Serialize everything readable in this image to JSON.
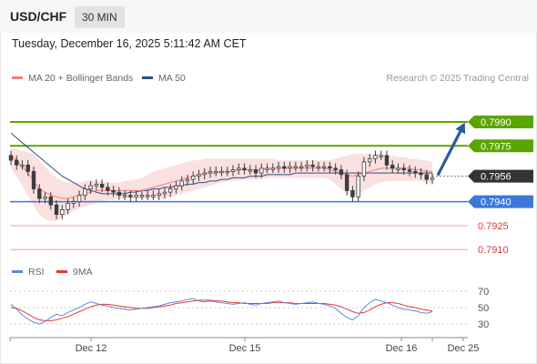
{
  "header": {
    "symbol": "USD/CHF",
    "timeframe": "30 MIN",
    "datetime": "Tuesday, December 16, 2025 5:11:42 AM CET"
  },
  "legend": {
    "ma20_label": "MA 20 + Bollinger Bands",
    "ma50_label": "MA 50",
    "rsi_label": "RSI",
    "ma9_label": "9MA",
    "credit": "Research © 2025 Trading Central"
  },
  "colors": {
    "candle": "#3d3d3d",
    "bollinger_fill": "#fbe0e0",
    "ma20": "#f08080",
    "ma50": "#2c4f86",
    "resistance": "#5aa500",
    "pivot": "#3c78d8",
    "support": "#e0383c",
    "current": "#333333",
    "arrow": "#2c5b9a",
    "rsi": "#5b8bd9",
    "rsi_ma": "#e53935"
  },
  "chart_data": [
    {
      "type": "candlestick",
      "instrument": "USD/CHF",
      "interval": "30 MIN",
      "ylim": [
        0.7905,
        0.7998
      ],
      "x_ticks": [
        "Dec 12",
        "Dec 15",
        "Dec 16",
        "Dec 25"
      ],
      "current_price": 0.7956,
      "levels": [
        {
          "value": 0.799,
          "label": "0.7990",
          "kind": "resistance"
        },
        {
          "value": 0.7975,
          "label": "0.7975",
          "kind": "resistance"
        },
        {
          "value": 0.7956,
          "label": "0.7956",
          "kind": "current"
        },
        {
          "value": 0.794,
          "label": "0.7940",
          "kind": "pivot"
        },
        {
          "value": 0.7925,
          "label": "0.7925",
          "kind": "support"
        },
        {
          "value": 0.791,
          "label": "0.7910",
          "kind": "support"
        }
      ],
      "close": [
        0.7966,
        0.7963,
        0.7963,
        0.7959,
        0.7948,
        0.7942,
        0.7943,
        0.7938,
        0.7932,
        0.7935,
        0.7939,
        0.794,
        0.7944,
        0.7948,
        0.795,
        0.7951,
        0.7949,
        0.7947,
        0.7946,
        0.7944,
        0.7944,
        0.7943,
        0.7944,
        0.7944,
        0.7944,
        0.7944,
        0.7945,
        0.7946,
        0.7948,
        0.795,
        0.7953,
        0.7954,
        0.7956,
        0.7957,
        0.7958,
        0.7959,
        0.7959,
        0.7959,
        0.7959,
        0.796,
        0.7961,
        0.796,
        0.796,
        0.7958,
        0.7961,
        0.7961,
        0.7961,
        0.7962,
        0.7961,
        0.7962,
        0.7962,
        0.7962,
        0.7963,
        0.7962,
        0.7962,
        0.7962,
        0.7961,
        0.796,
        0.7957,
        0.7947,
        0.7943,
        0.7956,
        0.7965,
        0.7967,
        0.7969,
        0.7969,
        0.7963,
        0.7961,
        0.7961,
        0.796,
        0.7959,
        0.7958,
        0.7957,
        0.7954,
        0.7955
      ],
      "ma20": [
        0.7969,
        0.7966,
        0.7962,
        0.7958,
        0.7953,
        0.7948,
        0.7946,
        0.7944,
        0.7943,
        0.7942,
        0.7942,
        0.7943,
        0.7944,
        0.7945,
        0.7946,
        0.7947,
        0.7947,
        0.7947,
        0.7947,
        0.7947,
        0.7947,
        0.7947,
        0.7947,
        0.7947,
        0.7948,
        0.7949,
        0.795,
        0.7951,
        0.7952,
        0.7953,
        0.7954,
        0.7955,
        0.7956,
        0.7957,
        0.7958,
        0.7958,
        0.7958,
        0.7959,
        0.7959,
        0.7959,
        0.796,
        0.796,
        0.796,
        0.796,
        0.796,
        0.7961,
        0.7961,
        0.7961,
        0.7961,
        0.7961,
        0.7961,
        0.7961,
        0.7961,
        0.7961,
        0.7961,
        0.7961,
        0.796,
        0.7959,
        0.7958,
        0.7957,
        0.7956,
        0.7957,
        0.7958,
        0.7959,
        0.796,
        0.7961,
        0.7961,
        0.7961,
        0.7961,
        0.7961,
        0.7961,
        0.796,
        0.796,
        0.7959,
        0.7959
      ],
      "bb_upper": [
        0.7974,
        0.7973,
        0.7972,
        0.7971,
        0.797,
        0.7966,
        0.7962,
        0.7958,
        0.7955,
        0.7953,
        0.7952,
        0.7952,
        0.7952,
        0.7953,
        0.7953,
        0.7953,
        0.7953,
        0.7952,
        0.7952,
        0.7952,
        0.7953,
        0.7953,
        0.7954,
        0.7955,
        0.7957,
        0.7959,
        0.796,
        0.7961,
        0.7962,
        0.7963,
        0.7964,
        0.7965,
        0.7966,
        0.7966,
        0.7967,
        0.7967,
        0.7967,
        0.7967,
        0.7967,
        0.7967,
        0.7967,
        0.7967,
        0.7967,
        0.7967,
        0.7967,
        0.7967,
        0.7967,
        0.7966,
        0.7966,
        0.7966,
        0.7966,
        0.7966,
        0.7966,
        0.7966,
        0.7966,
        0.7966,
        0.7966,
        0.7967,
        0.7968,
        0.7969,
        0.797,
        0.797,
        0.797,
        0.797,
        0.797,
        0.797,
        0.7969,
        0.7969,
        0.7968,
        0.7968,
        0.7967,
        0.7967,
        0.7966,
        0.7966,
        0.7965
      ],
      "bb_lower": [
        0.7961,
        0.7956,
        0.795,
        0.7944,
        0.7937,
        0.7932,
        0.7929,
        0.7928,
        0.7928,
        0.793,
        0.7932,
        0.7934,
        0.7936,
        0.7937,
        0.7938,
        0.7939,
        0.794,
        0.7941,
        0.7941,
        0.7942,
        0.7942,
        0.7942,
        0.7942,
        0.7942,
        0.7942,
        0.7942,
        0.7942,
        0.7942,
        0.7943,
        0.7944,
        0.7945,
        0.7946,
        0.7947,
        0.7948,
        0.7949,
        0.795,
        0.7951,
        0.7952,
        0.7953,
        0.7953,
        0.7953,
        0.7954,
        0.7954,
        0.7954,
        0.7954,
        0.7955,
        0.7955,
        0.7955,
        0.7955,
        0.7955,
        0.7955,
        0.7955,
        0.7955,
        0.7955,
        0.7955,
        0.7955,
        0.7954,
        0.7951,
        0.7948,
        0.7945,
        0.7944,
        0.7945,
        0.7947,
        0.7949,
        0.7951,
        0.7952,
        0.7953,
        0.7953,
        0.7953,
        0.7953,
        0.7953,
        0.7953,
        0.7953,
        0.7952,
        0.7952
      ],
      "ma50": [
        0.7983,
        0.798,
        0.7977,
        0.7974,
        0.7971,
        0.7968,
        0.7965,
        0.7962,
        0.7959,
        0.7956,
        0.7954,
        0.7952,
        0.795,
        0.7948,
        0.7947,
        0.7946,
        0.7945,
        0.7945,
        0.7945,
        0.7945,
        0.7945,
        0.7946,
        0.7946,
        0.7947,
        0.7947,
        0.7948,
        0.7948,
        0.7949,
        0.7949,
        0.795,
        0.795,
        0.7951,
        0.7951,
        0.7952,
        0.7952,
        0.7953,
        0.7953,
        0.7954,
        0.7954,
        0.7955,
        0.7955,
        0.7955,
        0.7956,
        0.7956,
        0.7956,
        0.7957,
        0.7957,
        0.7957,
        0.7957,
        0.7957,
        0.7958,
        0.7958,
        0.7958,
        0.7958,
        0.7958,
        0.7958,
        0.7958,
        0.7958,
        0.7958,
        0.7958,
        0.7958,
        0.7958,
        0.7958,
        0.7958,
        0.7958,
        0.7958,
        0.7958,
        0.7958,
        0.7958,
        0.7958,
        0.7958,
        0.7958,
        0.7958,
        0.7958,
        0.7958
      ],
      "projection": {
        "from": 0.7956,
        "to": 0.799
      }
    },
    {
      "type": "line",
      "title": "RSI",
      "ylim": [
        20,
        80
      ],
      "y_ticks": [
        70,
        50,
        30
      ],
      "x_ticks": [
        "Dec 12",
        "Dec 15",
        "Dec 16",
        "Dec 25"
      ],
      "series": [
        {
          "name": "RSI",
          "values": [
            54,
            48,
            41,
            36,
            32,
            30,
            33,
            38,
            42,
            40,
            44,
            47,
            50,
            54,
            57,
            55,
            53,
            52,
            50,
            49,
            48,
            47,
            48,
            49,
            50,
            51,
            52,
            54,
            56,
            57,
            58,
            60,
            61,
            58,
            57,
            58,
            57,
            56,
            55,
            54,
            55,
            56,
            54,
            53,
            55,
            56,
            57,
            58,
            56,
            55,
            54,
            55,
            56,
            57,
            55,
            54,
            52,
            49,
            43,
            38,
            35,
            40,
            50,
            56,
            60,
            58,
            56,
            53,
            50,
            48,
            47,
            46,
            44,
            43,
            45
          ]
        },
        {
          "name": "9MA",
          "values": [
            50,
            49,
            46,
            42,
            38,
            35,
            34,
            34,
            35,
            37,
            39,
            42,
            45,
            48,
            51,
            53,
            54,
            54,
            53,
            52,
            51,
            50,
            49,
            49,
            49,
            50,
            51,
            52,
            53,
            55,
            56,
            57,
            58,
            59,
            59,
            59,
            58,
            58,
            57,
            56,
            56,
            55,
            55,
            55,
            55,
            55,
            56,
            56,
            56,
            56,
            55,
            55,
            55,
            55,
            55,
            55,
            54,
            53,
            51,
            48,
            45,
            43,
            44,
            47,
            51,
            54,
            56,
            56,
            55,
            53,
            51,
            50,
            48,
            47,
            46
          ]
        }
      ]
    }
  ]
}
